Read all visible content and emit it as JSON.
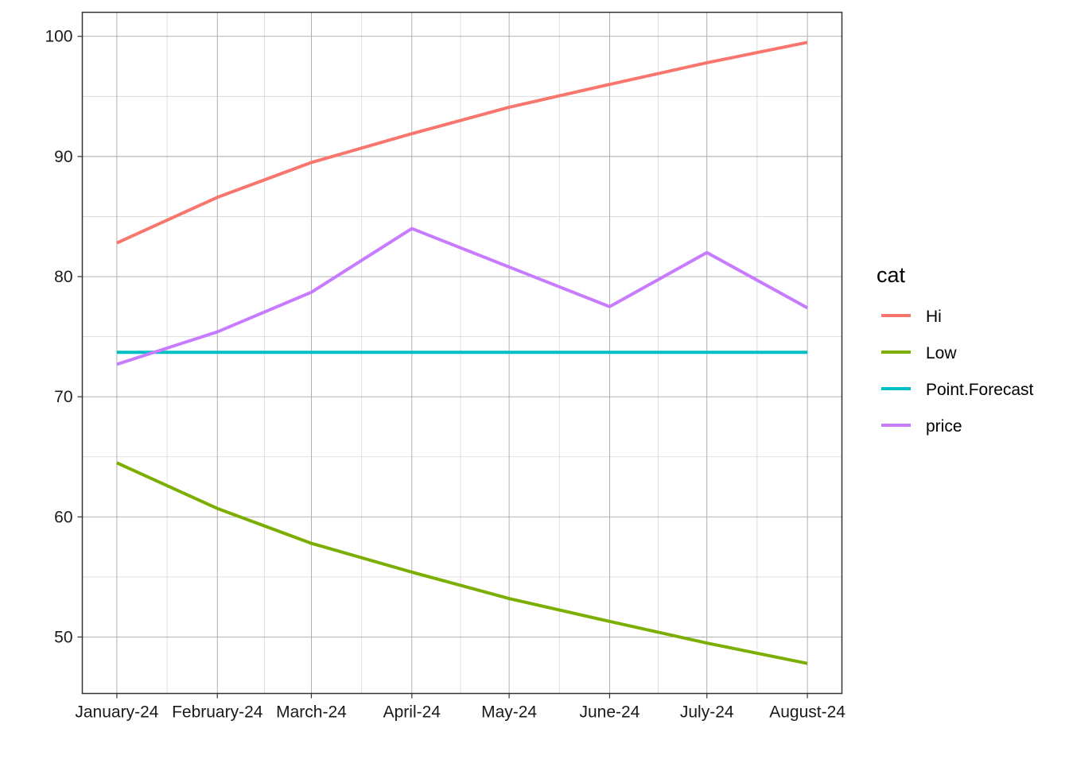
{
  "chart_data": {
    "type": "line",
    "x": [
      "January-24",
      "February-24",
      "March-24",
      "April-24",
      "May-24",
      "June-24",
      "July-24",
      "August-24"
    ],
    "x_dates": [
      "2024-01-01",
      "2024-02-01",
      "2024-03-01",
      "2024-04-01",
      "2024-05-01",
      "2024-06-01",
      "2024-07-01",
      "2024-08-01"
    ],
    "title": "",
    "xlabel": "",
    "ylabel": "",
    "ylim": [
      45.3,
      102
    ],
    "yticks": [
      50,
      60,
      70,
      80,
      90,
      100
    ],
    "grid": true,
    "legend": {
      "title": "cat",
      "position": "right"
    },
    "series": [
      {
        "name": "Hi",
        "color": "#F8766D",
        "values": [
          82.8,
          86.6,
          89.5,
          91.9,
          94.1,
          96.0,
          97.8,
          99.5
        ]
      },
      {
        "name": "Low",
        "color": "#7CAE00",
        "values": [
          64.5,
          60.7,
          57.8,
          55.4,
          53.2,
          51.3,
          49.5,
          47.8
        ]
      },
      {
        "name": "Point.Forecast",
        "color": "#00BFC4",
        "values": [
          73.7,
          73.7,
          73.7,
          73.7,
          73.7,
          73.7,
          73.7,
          73.7
        ]
      },
      {
        "name": "price",
        "color": "#C77CFF",
        "values": [
          72.7,
          75.4,
          78.7,
          84.0,
          80.8,
          77.5,
          82.0,
          77.4
        ]
      }
    ]
  }
}
